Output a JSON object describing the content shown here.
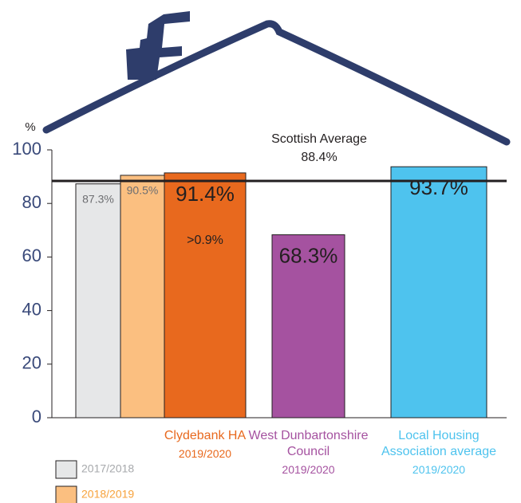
{
  "chart_data": {
    "type": "bar",
    "y_axis_label": "%",
    "categories": [
      null,
      null,
      "Clydebank HA",
      "West Dunbartonshire Council",
      "Local Housing Association average"
    ],
    "periods": [
      "2017/2018",
      "2018/2019",
      "2019/2020",
      "2019/2020",
      "2019/2020"
    ],
    "values": [
      87.3,
      90.5,
      91.4,
      68.3,
      93.7
    ],
    "value_labels": [
      "87.3%",
      "90.5%",
      "91.4%",
      "68.3%",
      "93.7%"
    ],
    "colors": [
      "#e6e7e8",
      "#fbbf80",
      "#e8691e",
      "#a552a0",
      "#4ec3ee"
    ],
    "label_colors": [
      "#a7a9ac",
      "#f7a23b",
      "#e8691e",
      "#a552a0",
      "#4ec3ee"
    ],
    "ylim": [
      0,
      100
    ],
    "yticks": [
      0,
      20,
      40,
      60,
      80,
      100
    ],
    "reference_line": {
      "value": 88.4,
      "label": "Scottish Average 88.4%"
    },
    "annotation": ">0.9%"
  }
}
